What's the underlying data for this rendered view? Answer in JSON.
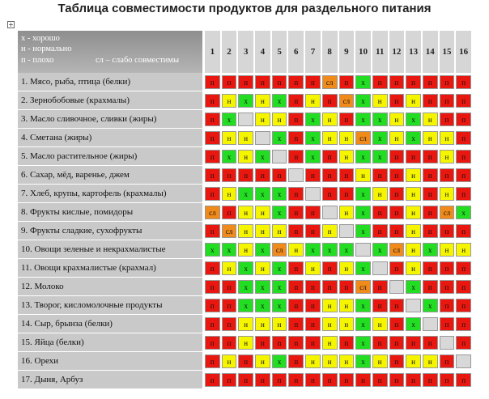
{
  "title": "Таблица совместимости продуктов для раздельного питания",
  "legend": [
    "х - хорошо",
    "н - нормально",
    "п - плохо",
    "сл – слабо совместимы"
  ],
  "cell_colors": {
    "п": "#e8170f",
    "н": "#f5f500",
    "х": "#22dd22",
    "сл": "#f08a1a"
  },
  "columns": [
    1,
    2,
    3,
    4,
    5,
    6,
    7,
    8,
    9,
    10,
    11,
    12,
    13,
    14,
    15,
    16
  ],
  "rows": [
    {
      "label": "1. Мясо, рыба, птица (белки)",
      "cells": [
        "п",
        "п",
        "п",
        "п",
        "п",
        "п",
        "п",
        "сл",
        "п",
        "х",
        "п",
        "п",
        "п",
        "п",
        "п",
        "п"
      ]
    },
    {
      "label": "2. Зернобобовые (крахмалы)",
      "cells": [
        "п",
        "н",
        "х",
        "н",
        "х",
        "п",
        "н",
        "п",
        "сл",
        "х",
        "н",
        "п",
        "н",
        "п",
        "п",
        "п"
      ]
    },
    {
      "label": "3. Масло сливочное, сливки (жиры)",
      "cells": [
        "п",
        "х",
        null,
        "н",
        "н",
        "п",
        "х",
        "н",
        "п",
        "х",
        "х",
        "н",
        "х",
        "н",
        "п",
        "п"
      ]
    },
    {
      "label": "4. Сметана (жиры)",
      "cells": [
        "п",
        "н",
        "н",
        null,
        "х",
        "п",
        "х",
        "н",
        "н",
        "сл",
        "х",
        "н",
        "х",
        "н",
        "н",
        "п"
      ]
    },
    {
      "label": "5. Масло растительное (жиры)",
      "cells": [
        "п",
        "х",
        "н",
        "х",
        null,
        "п",
        "х",
        "п",
        "н",
        "х",
        "х",
        "п",
        "п",
        "п",
        "н",
        "п"
      ]
    },
    {
      "label": "6. Сахар, мёд, варенье, джем",
      "cells": [
        "п",
        "п",
        "п",
        "п",
        "п",
        null,
        "п",
        "п",
        "п",
        "н",
        "п",
        "п",
        "н",
        "п",
        "п",
        "п"
      ]
    },
    {
      "label": "7. Хлеб, крупы, картофель (крахмалы)",
      "cells": [
        "п",
        "н",
        "х",
        "х",
        "х",
        "п",
        null,
        "п",
        "п",
        "х",
        "н",
        "п",
        "н",
        "п",
        "н",
        "п"
      ]
    },
    {
      "label": "8. Фрукты кислые, помидоры",
      "cells": [
        "сл",
        "п",
        "н",
        "н",
        "х",
        "п",
        "п",
        null,
        "н",
        "х",
        "п",
        "п",
        "н",
        "п",
        "сл",
        "х"
      ]
    },
    {
      "label": "9. Фрукты сладкие, сухофрукты",
      "cells": [
        "п",
        "сл",
        "н",
        "н",
        "н",
        "п",
        "п",
        "н",
        null,
        "х",
        "п",
        "п",
        "н",
        "п",
        "п",
        "п"
      ]
    },
    {
      "label": "10. Овощи зеленые и некрахмалистые",
      "cells": [
        "х",
        "х",
        "н",
        "х",
        "сл",
        "н",
        "х",
        "х",
        "х",
        null,
        "х",
        "сл",
        "н",
        "х",
        "н",
        "н"
      ]
    },
    {
      "label": "11. Овощи крахмалистые (крахмал)",
      "cells": [
        "п",
        "н",
        "х",
        "н",
        "х",
        "п",
        "н",
        "п",
        "н",
        "х",
        null,
        "п",
        "н",
        "п",
        "п",
        "п"
      ]
    },
    {
      "label": "12. Молоко",
      "cells": [
        "п",
        "п",
        "х",
        "х",
        "х",
        "п",
        "п",
        "п",
        "п",
        "сл",
        "п",
        null,
        "х",
        "п",
        "п",
        "п"
      ]
    },
    {
      "label": "13. Творог, кисломолочные продукты",
      "cells": [
        "п",
        "п",
        "х",
        "х",
        "х",
        "п",
        "п",
        "н",
        "н",
        "х",
        "п",
        "п",
        null,
        "х",
        "п",
        "п"
      ]
    },
    {
      "label": "14. Сыр, брынза (белки)",
      "cells": [
        "п",
        "п",
        "н",
        "н",
        "н",
        "п",
        "п",
        "н",
        "н",
        "х",
        "н",
        "п",
        "х",
        null,
        "п",
        "п"
      ]
    },
    {
      "label": "15. Яйца (белки)",
      "cells": [
        "п",
        "п",
        "н",
        "п",
        "п",
        "п",
        "п",
        "н",
        "п",
        "х",
        "п",
        "п",
        "п",
        "п",
        null,
        "п"
      ]
    },
    {
      "label": "16. Орехи",
      "cells": [
        "п",
        "н",
        "п",
        "н",
        "х",
        "п",
        "н",
        "н",
        "н",
        "х",
        "н",
        "п",
        "н",
        "н",
        "п",
        null
      ]
    },
    {
      "label": "17. Дыня, Арбуз",
      "cells": [
        "п",
        "п",
        "п",
        "п",
        "п",
        "п",
        "п",
        "п",
        "п",
        "п",
        "п",
        "п",
        "п",
        "п",
        "п",
        "п"
      ]
    }
  ]
}
